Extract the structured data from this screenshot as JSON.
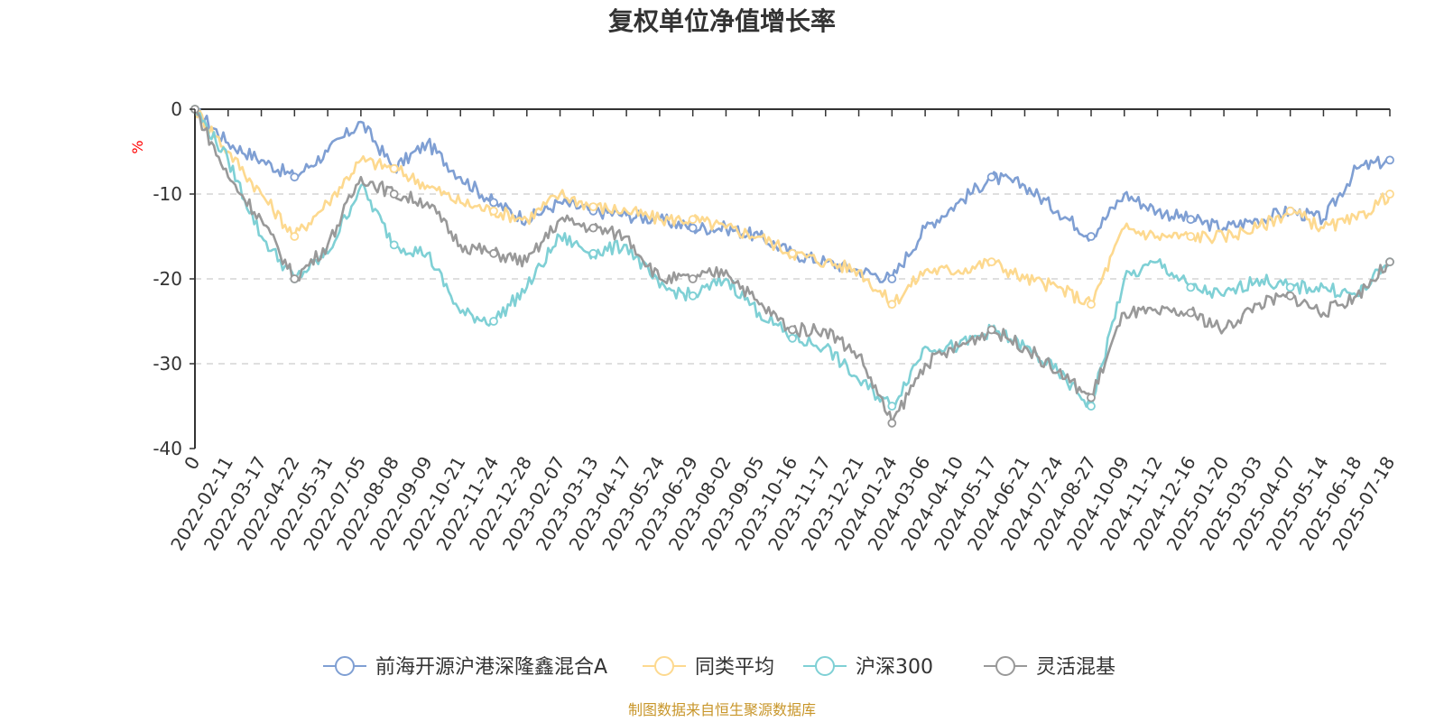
{
  "chart_data": {
    "type": "line",
    "title": "复权单位净值增长率",
    "ylabel": "%",
    "ylim": [
      -40,
      0
    ],
    "yticks": [
      0,
      -10,
      -20,
      -30,
      -40
    ],
    "grid": true,
    "legend_position": "bottom",
    "categories": [
      "0",
      "2022-02-11",
      "2022-03-17",
      "2022-04-22",
      "2022-05-31",
      "2022-07-05",
      "2022-08-08",
      "2022-09-09",
      "2022-10-21",
      "2022-11-24",
      "2022-12-28",
      "2023-02-07",
      "2023-03-13",
      "2023-04-17",
      "2023-05-24",
      "2023-06-29",
      "2023-08-02",
      "2023-09-05",
      "2023-10-16",
      "2023-11-17",
      "2023-12-21",
      "2024-01-24",
      "2024-03-06",
      "2024-04-10",
      "2024-05-17",
      "2024-06-21",
      "2024-07-24",
      "2024-08-27",
      "2024-10-09",
      "2024-11-12",
      "2024-12-16",
      "2025-01-20",
      "2025-03-03",
      "2025-04-07",
      "2025-05-14",
      "2025-06-18",
      "2025-07-18"
    ],
    "series": [
      {
        "name": "前海开源沪港深隆鑫混合A",
        "color": "#7f9fd3",
        "values": [
          0,
          -4,
          -6,
          -8,
          -5,
          -1.5,
          -7,
          -4,
          -8,
          -11,
          -13,
          -11,
          -12,
          -12.5,
          -13,
          -14,
          -14,
          -15,
          -17,
          -18,
          -19,
          -20,
          -14,
          -11,
          -8,
          -9,
          -12,
          -15,
          -10,
          -12,
          -13,
          -14,
          -13,
          -12,
          -13,
          -7,
          -6
        ]
      },
      {
        "name": "同类平均",
        "color": "#fdd98f",
        "values": [
          0,
          -5,
          -10,
          -15,
          -11,
          -6,
          -7,
          -9,
          -11,
          -12,
          -13,
          -10,
          -11.5,
          -12,
          -13,
          -13,
          -14,
          -15,
          -17,
          -18,
          -19,
          -23,
          -19,
          -19,
          -18,
          -20,
          -21,
          -23,
          -14,
          -15,
          -15,
          -15,
          -14,
          -12,
          -14,
          -13,
          -10
        ]
      },
      {
        "name": "沪深300",
        "color": "#7fd0d5",
        "values": [
          0,
          -6,
          -15,
          -20,
          -17,
          -9,
          -16,
          -17,
          -24,
          -25,
          -21,
          -15,
          -17,
          -16,
          -21,
          -22,
          -20,
          -24,
          -27,
          -28,
          -32,
          -35,
          -28,
          -28,
          -26,
          -28,
          -31,
          -35,
          -20,
          -18,
          -21,
          -22,
          -20,
          -21,
          -21,
          -22,
          -18
        ]
      },
      {
        "name": "灵活混基",
        "color": "#999999",
        "values": [
          0,
          -8,
          -13,
          -20,
          -16,
          -8,
          -10,
          -11,
          -16,
          -17,
          -18,
          -13,
          -14,
          -15,
          -20,
          -20,
          -19,
          -23,
          -26,
          -26,
          -29,
          -37,
          -30,
          -28,
          -26,
          -28,
          -31,
          -34,
          -24,
          -24,
          -24,
          -26,
          -23,
          -22,
          -24,
          -22,
          -18
        ]
      }
    ]
  },
  "source_note": "制图数据来自恒生聚源数据库"
}
